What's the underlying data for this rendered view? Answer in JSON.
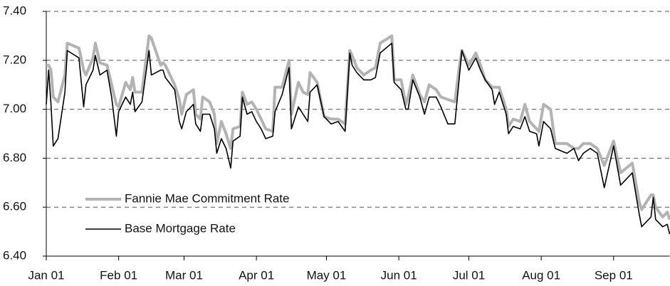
{
  "chart_data": {
    "type": "line",
    "x": [
      0,
      1,
      2,
      3,
      5,
      8,
      9,
      14,
      16,
      17,
      20,
      21,
      23,
      26,
      28,
      30,
      31,
      34,
      36,
      37,
      38,
      41,
      44,
      45,
      49,
      50,
      51,
      55,
      57,
      58,
      60,
      63,
      64,
      66,
      67,
      70,
      72,
      73,
      75,
      77,
      79,
      80,
      83,
      84,
      86,
      88,
      90,
      92,
      94,
      97,
      98,
      101,
      104,
      105,
      108,
      110,
      112,
      113,
      116,
      119,
      122,
      125,
      128,
      130,
      131,
      133,
      136,
      139,
      141,
      143,
      148,
      149,
      152,
      154,
      155,
      157,
      160,
      162,
      164,
      167,
      169,
      172,
      175,
      177,
      178,
      181,
      184,
      186,
      188,
      191,
      192,
      194,
      197,
      198,
      200,
      203,
      205,
      207,
      210,
      211,
      213,
      216,
      218,
      223,
      226,
      228,
      230,
      233,
      236,
      239,
      243,
      246,
      251,
      254,
      255,
      259,
      260,
      261,
      264,
      266,
      267
    ],
    "series": [
      {
        "name": "Fannie Mae Commitment Rate",
        "color": "#b3b3b3",
        "values": [
          7.18,
          7.18,
          7.16,
          7.05,
          7.03,
          7.14,
          7.27,
          7.25,
          7.16,
          7.14,
          7.21,
          7.27,
          7.19,
          7.18,
          7.1,
          7.02,
          7.01,
          7.11,
          7.08,
          7.13,
          7.07,
          7.07,
          7.3,
          7.29,
          7.18,
          7.19,
          7.18,
          7.1,
          7.04,
          6.98,
          7.06,
          7.08,
          6.98,
          6.96,
          7.05,
          7.03,
          6.98,
          6.86,
          6.95,
          6.9,
          6.84,
          6.92,
          6.93,
          7.07,
          7.02,
          7.03,
          7.0,
          6.96,
          6.92,
          6.91,
          7.09,
          7.09,
          7.2,
          6.98,
          7.11,
          7.07,
          7.06,
          7.15,
          7.11,
          6.97,
          6.96,
          6.96,
          6.94,
          7.24,
          7.22,
          7.17,
          7.14,
          7.16,
          7.17,
          7.27,
          7.3,
          7.12,
          7.12,
          7.02,
          7.05,
          7.14,
          7.06,
          7.03,
          7.1,
          7.08,
          7.05,
          7.04,
          7.03,
          7.18,
          7.24,
          7.18,
          7.23,
          7.18,
          7.12,
          7.09,
          7.09,
          7.09,
          7.0,
          6.93,
          6.96,
          6.95,
          7.02,
          6.95,
          6.92,
          6.91,
          7.02,
          7.0,
          6.86,
          6.86,
          6.84,
          6.84,
          6.86,
          6.86,
          6.84,
          6.77,
          6.87,
          6.74,
          6.78,
          6.62,
          6.59,
          6.65,
          6.65,
          6.6,
          6.56,
          6.58,
          6.55
        ]
      },
      {
        "name": "Base Mortgage Rate",
        "color": "#000000",
        "values": [
          7.02,
          7.16,
          7.02,
          6.85,
          6.88,
          7.07,
          7.24,
          7.21,
          7.01,
          7.1,
          7.16,
          7.22,
          7.14,
          7.16,
          7.05,
          6.89,
          6.99,
          7.05,
          7.02,
          7.07,
          6.99,
          7.03,
          7.24,
          7.14,
          7.16,
          7.16,
          7.13,
          7.08,
          6.95,
          6.92,
          6.99,
          7.02,
          6.94,
          6.91,
          6.98,
          6.98,
          6.92,
          6.82,
          6.88,
          6.84,
          6.76,
          6.87,
          6.89,
          7.05,
          6.98,
          6.99,
          6.95,
          6.92,
          6.88,
          6.89,
          6.99,
          7.06,
          7.17,
          6.92,
          7.01,
          6.98,
          6.95,
          7.07,
          7.1,
          6.97,
          6.94,
          6.95,
          6.91,
          7.23,
          7.18,
          7.15,
          7.12,
          7.12,
          7.13,
          7.23,
          7.27,
          7.11,
          7.08,
          7.0,
          7.0,
          7.12,
          7.05,
          6.98,
          7.05,
          7.05,
          7.01,
          6.94,
          6.94,
          7.14,
          7.24,
          7.16,
          7.21,
          7.16,
          7.12,
          7.08,
          7.02,
          7.07,
          6.98,
          6.9,
          6.93,
          6.92,
          6.97,
          6.91,
          6.9,
          6.85,
          6.95,
          6.92,
          6.84,
          6.82,
          6.84,
          6.79,
          6.82,
          6.84,
          6.82,
          6.68,
          6.85,
          6.69,
          6.74,
          6.57,
          6.52,
          6.56,
          6.64,
          6.55,
          6.52,
          6.53,
          6.49
        ]
      }
    ],
    "xlim": [
      0,
      267
    ],
    "xticks": [
      {
        "value": 0,
        "label": "Jan 01"
      },
      {
        "value": 31,
        "label": "Feb 01"
      },
      {
        "value": 59,
        "label": "Mar 01"
      },
      {
        "value": 90,
        "label": "Apr 01"
      },
      {
        "value": 120,
        "label": "May 01"
      },
      {
        "value": 151,
        "label": "Jun 01"
      },
      {
        "value": 181,
        "label": "Jul 01"
      },
      {
        "value": 212,
        "label": "Aug 01"
      },
      {
        "value": 243,
        "label": "Sep 01"
      }
    ],
    "ylim": [
      6.4,
      7.4
    ],
    "yticks": [
      {
        "value": 6.4,
        "label": "6.40"
      },
      {
        "value": 6.6,
        "label": "6.60"
      },
      {
        "value": 6.8,
        "label": "6.80"
      },
      {
        "value": 7.0,
        "label": "7.00"
      },
      {
        "value": 7.2,
        "label": "7.20"
      },
      {
        "value": 7.4,
        "label": "7.40"
      }
    ],
    "grid": true,
    "legend": "lower-left"
  }
}
